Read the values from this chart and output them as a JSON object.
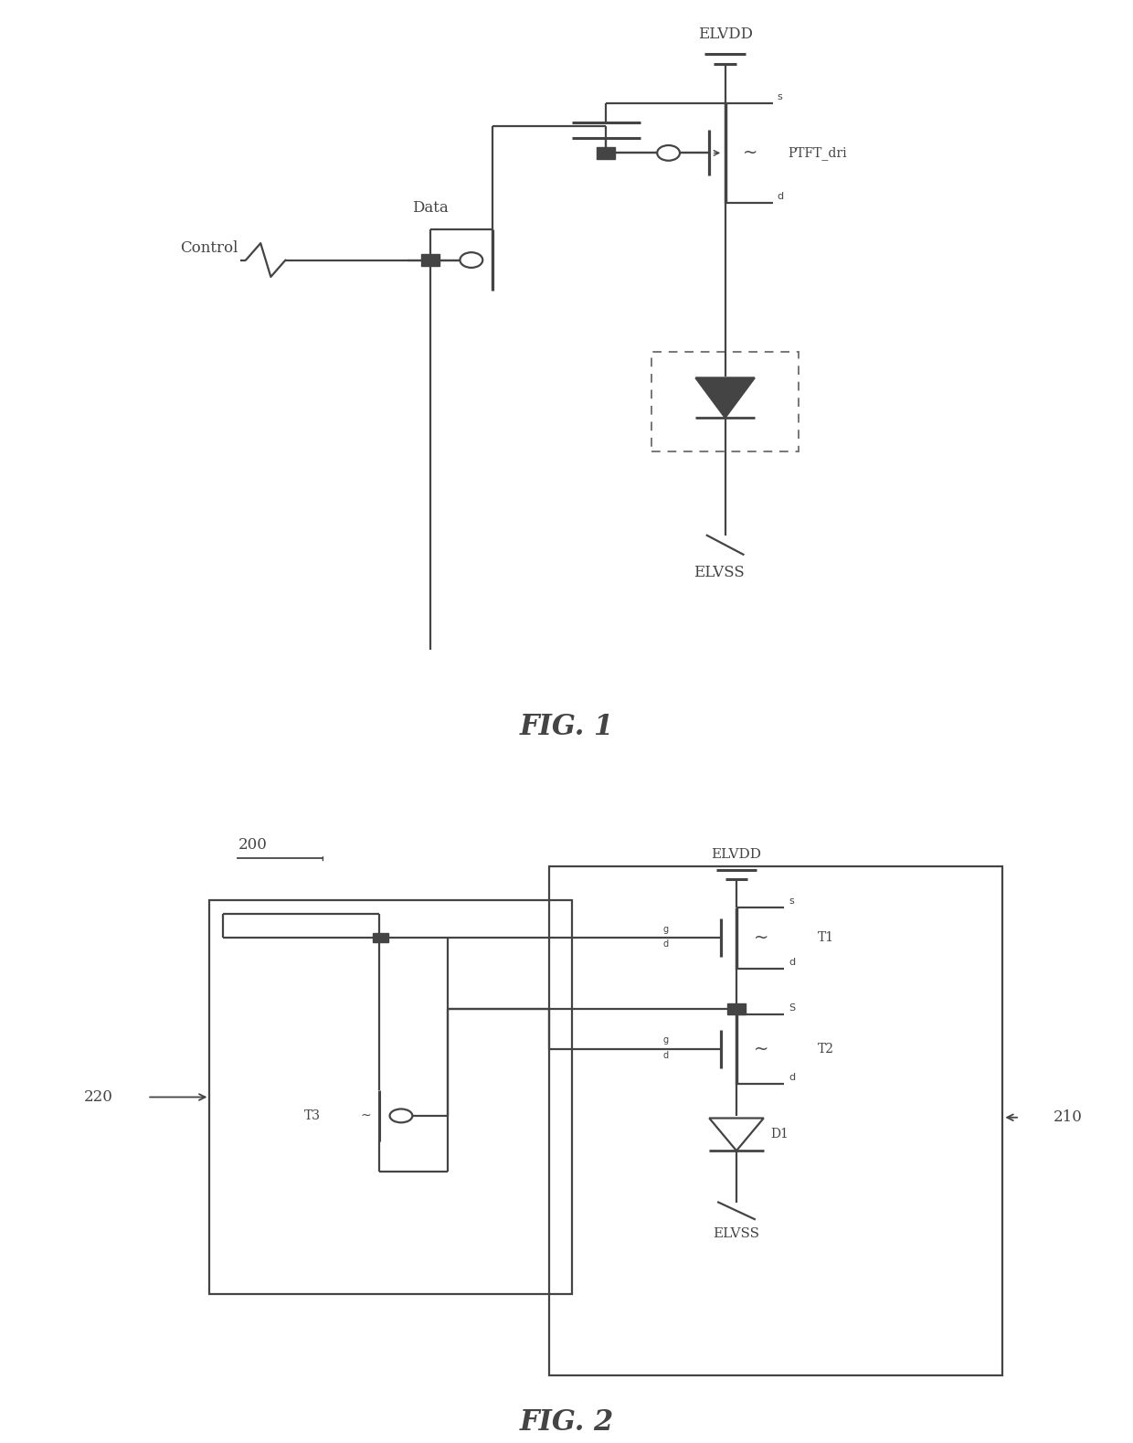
{
  "bg": "white",
  "lc": "#444444",
  "lw": 1.6,
  "fig1_title": "FIG. 1",
  "fig2_title": "FIG. 2",
  "label_200": "200",
  "label_220": "220",
  "label_210": "210",
  "label_elvdd": "ELVDD",
  "label_elvss": "ELVSS",
  "label_data": "Data",
  "label_control": "Control",
  "label_ptft": "PTFT_dri",
  "label_t1": "T1",
  "label_t2": "T2",
  "label_t3": "T3",
  "label_d1": "D1"
}
